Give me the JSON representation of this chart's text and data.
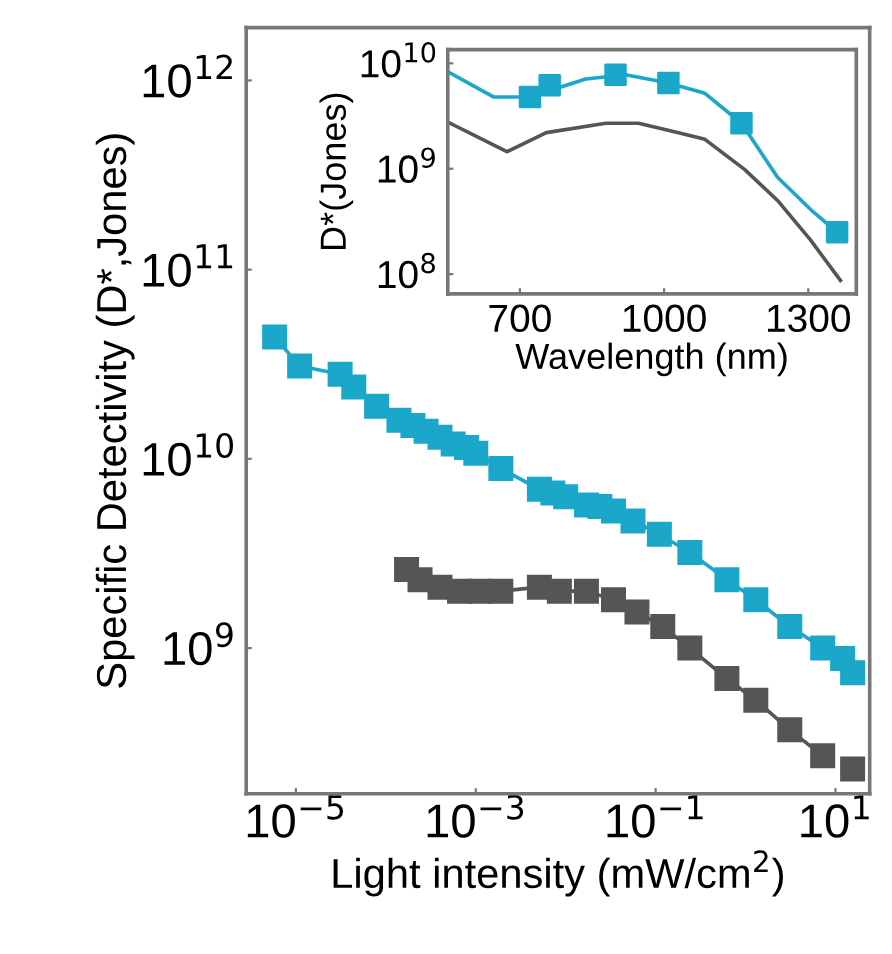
{
  "chart_data": [
    {
      "type": "line",
      "xlabel": "Light intensity (mW/cm$^{2}$)",
      "ylabel": "Specific Detectivity (D*,Jones)",
      "log": "xy",
      "marker": "square",
      "grid": false,
      "legend": false,
      "xlim": [
        2.8e-06,
        24
      ],
      "ylim": [
        170000000.0,
        1900000000000.0
      ],
      "xticks": [
        {
          "value": 1e-05,
          "label": "10$^{−5}$"
        },
        {
          "value": 0.001,
          "label": "10$^{−3}$"
        },
        {
          "value": 0.1,
          "label": "10$^{−1}$"
        },
        {
          "value": 10,
          "label": "10$^{1}$"
        }
      ],
      "yticks": [
        {
          "value": 1000000000.0,
          "label": "10$^{9}$"
        },
        {
          "value": 10000000000.0,
          "label": "10$^{10}$"
        },
        {
          "value": 100000000000.0,
          "label": "10$^{11}$"
        },
        {
          "value": 1000000000000.0,
          "label": "10$^{12}$"
        }
      ],
      "series": [
        {
          "color": "#1aa7c9",
          "x": [
            5.8e-06,
            1.1e-05,
            3.1e-05,
            4.4e-05,
            7.9e-05,
            0.00014,
            0.0002,
            0.00028,
            0.0004,
            0.00056,
            0.00079,
            0.001,
            0.0019,
            0.0051,
            0.0072,
            0.01,
            0.017,
            0.024,
            0.034,
            0.056,
            0.11,
            0.24,
            0.62,
            1.3,
            3.1,
            7.2,
            12,
            15.5
          ],
          "values": [
            44000000000.0,
            31000000000.0,
            28000000000.0,
            24000000000.0,
            19000000000.0,
            16000000000.0,
            15000000000.0,
            14000000000.0,
            13000000000.0,
            12000000000.0,
            11500000000.0,
            10700000000.0,
            8900000000.0,
            6900000000.0,
            6600000000.0,
            6300000000.0,
            5700000000.0,
            5600000000.0,
            5300000000.0,
            4700000000.0,
            4000000000.0,
            3200000000.0,
            2300000000.0,
            1800000000.0,
            1300000000.0,
            1000000000.0,
            880000000.0,
            740000000.0
          ]
        },
        {
          "color": "#555555",
          "x": [
            0.00017,
            0.00024,
            0.0004,
            0.00066,
            0.0011,
            0.0019,
            0.0051,
            0.0085,
            0.017,
            0.034,
            0.062,
            0.12,
            0.24,
            0.62,
            1.3,
            3.1,
            7.2,
            13,
            15.5
          ],
          "values": [
            2600000000.0,
            2300000000.0,
            2100000000.0,
            2000000000.0,
            2000000000.0,
            2000000000.0,
            2100000000.0,
            2000000000.0,
            2000000000.0,
            1800000000.0,
            1550000000.0,
            1300000000.0,
            1000000000.0,
            690000000.0,
            530000000.0,
            370000000.0,
            270000000.0,
            null,
            230000000.0
          ]
        }
      ]
    },
    {
      "type": "line",
      "xlabel": "Wavelength (nm)",
      "ylabel": "D*(Jones)",
      "log": "y",
      "grid": false,
      "legend": false,
      "xlim": [
        550,
        1400
      ],
      "ylim": [
        65000000.0,
        13500000000.0
      ],
      "xticks": [
        700,
        1000,
        1300
      ],
      "yticks": [
        {
          "value": 100000000.0,
          "label": "10$^{8}$"
        },
        {
          "value": 1000000000.0,
          "label": "10$^{9}$"
        },
        {
          "value": 10000000000.0,
          "label": "10$^{10}$"
        }
      ],
      "series": [
        {
          "type": "line",
          "marker": "none",
          "color": "#1aa7c9",
          "x": [
            555,
            645,
            721,
            837,
            920,
            1009,
            1085,
            1161,
            1236,
            1305,
            1360
          ],
          "values": [
            8100000000.0,
            4800000000.0,
            4800000000.0,
            7100000000.0,
            7800000000.0,
            6500000000.0,
            5200000000.0,
            2700000000.0,
            830000000.0,
            410000000.0,
            250000000.0
          ]
        },
        {
          "type": "line",
          "marker": "none",
          "color": "#555555",
          "x": [
            555,
            673,
            755,
            879,
            947,
            1030,
            1085,
            1168,
            1236,
            1305,
            1367
          ],
          "values": [
            2700000000.0,
            1450000000.0,
            2200000000.0,
            2700000000.0,
            2700000000.0,
            2200000000.0,
            1900000000.0,
            980000000.0,
            500000000.0,
            210000000.0,
            87000000.0
          ]
        },
        {
          "type": "scatter",
          "marker": "square",
          "color": "#1aa7c9",
          "x": [
            721,
            762,
            899,
            1009,
            1161,
            1360
          ],
          "values": [
            4800000000.0,
            6200000000.0,
            7800000000.0,
            6500000000.0,
            2700000000.0,
            250000000.0
          ]
        }
      ]
    }
  ]
}
